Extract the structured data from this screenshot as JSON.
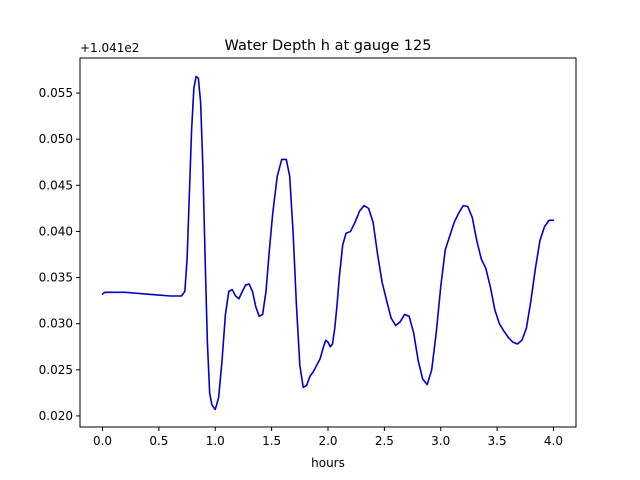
{
  "chart_data": {
    "type": "line",
    "title": "Water Depth h at gauge 125",
    "xlabel": "hours",
    "ylabel": "",
    "offset_label": "+1.041e2",
    "xlim": [
      -0.2,
      4.2
    ],
    "ylim": [
      0.0188,
      0.0588
    ],
    "xticks": [
      0.0,
      0.5,
      1.0,
      1.5,
      2.0,
      2.5,
      3.0,
      3.5,
      4.0
    ],
    "xtick_labels": [
      "0.0",
      "0.5",
      "1.0",
      "1.5",
      "2.0",
      "2.5",
      "3.0",
      "3.5",
      "4.0"
    ],
    "yticks": [
      0.02,
      0.025,
      0.03,
      0.035,
      0.04,
      0.045,
      0.05,
      0.055
    ],
    "ytick_labels": [
      "0.020",
      "0.025",
      "0.030",
      "0.035",
      "0.040",
      "0.045",
      "0.050",
      "0.055"
    ],
    "grid": false,
    "series": [
      {
        "color": "#0000cc",
        "x": [
          0.0,
          0.02,
          0.1,
          0.2,
          0.3,
          0.4,
          0.5,
          0.6,
          0.7,
          0.73,
          0.75,
          0.77,
          0.79,
          0.81,
          0.83,
          0.85,
          0.87,
          0.89,
          0.91,
          0.93,
          0.95,
          0.97,
          1.0,
          1.03,
          1.06,
          1.09,
          1.12,
          1.15,
          1.18,
          1.21,
          1.24,
          1.27,
          1.3,
          1.33,
          1.36,
          1.39,
          1.42,
          1.45,
          1.48,
          1.51,
          1.55,
          1.59,
          1.63,
          1.66,
          1.69,
          1.72,
          1.75,
          1.78,
          1.81,
          1.84,
          1.87,
          1.9,
          1.93,
          1.96,
          1.98,
          2.0,
          2.02,
          2.04,
          2.06,
          2.08,
          2.1,
          2.13,
          2.16,
          2.2,
          2.24,
          2.28,
          2.32,
          2.36,
          2.4,
          2.44,
          2.48,
          2.52,
          2.56,
          2.6,
          2.64,
          2.68,
          2.72,
          2.76,
          2.8,
          2.84,
          2.88,
          2.92,
          2.96,
          3.0,
          3.04,
          3.08,
          3.12,
          3.16,
          3.2,
          3.24,
          3.28,
          3.32,
          3.36,
          3.4,
          3.44,
          3.48,
          3.52,
          3.56,
          3.6,
          3.64,
          3.68,
          3.72,
          3.76,
          3.8,
          3.84,
          3.88,
          3.92,
          3.96,
          4.0
        ],
        "y": [
          0.0332,
          0.0334,
          0.0334,
          0.0334,
          0.0333,
          0.0332,
          0.0331,
          0.033,
          0.033,
          0.0335,
          0.037,
          0.044,
          0.051,
          0.0555,
          0.0568,
          0.0566,
          0.054,
          0.047,
          0.037,
          0.028,
          0.0225,
          0.0212,
          0.0207,
          0.022,
          0.026,
          0.031,
          0.0335,
          0.0337,
          0.033,
          0.0327,
          0.0335,
          0.0342,
          0.0343,
          0.0335,
          0.0318,
          0.0308,
          0.031,
          0.0335,
          0.038,
          0.042,
          0.046,
          0.0478,
          0.0478,
          0.046,
          0.04,
          0.032,
          0.0255,
          0.0231,
          0.0233,
          0.0243,
          0.0248,
          0.0255,
          0.0262,
          0.0275,
          0.0282,
          0.028,
          0.0275,
          0.0278,
          0.0295,
          0.032,
          0.035,
          0.0385,
          0.0398,
          0.04,
          0.041,
          0.0422,
          0.0428,
          0.0425,
          0.041,
          0.0375,
          0.0345,
          0.0325,
          0.0306,
          0.0298,
          0.0302,
          0.031,
          0.0308,
          0.029,
          0.026,
          0.024,
          0.0234,
          0.025,
          0.029,
          0.034,
          0.038,
          0.0395,
          0.041,
          0.042,
          0.0428,
          0.0427,
          0.0415,
          0.039,
          0.037,
          0.036,
          0.034,
          0.0315,
          0.03,
          0.0292,
          0.0285,
          0.028,
          0.0278,
          0.0282,
          0.0295,
          0.0325,
          0.036,
          0.039,
          0.0405,
          0.0412,
          0.0412
        ]
      }
    ]
  }
}
